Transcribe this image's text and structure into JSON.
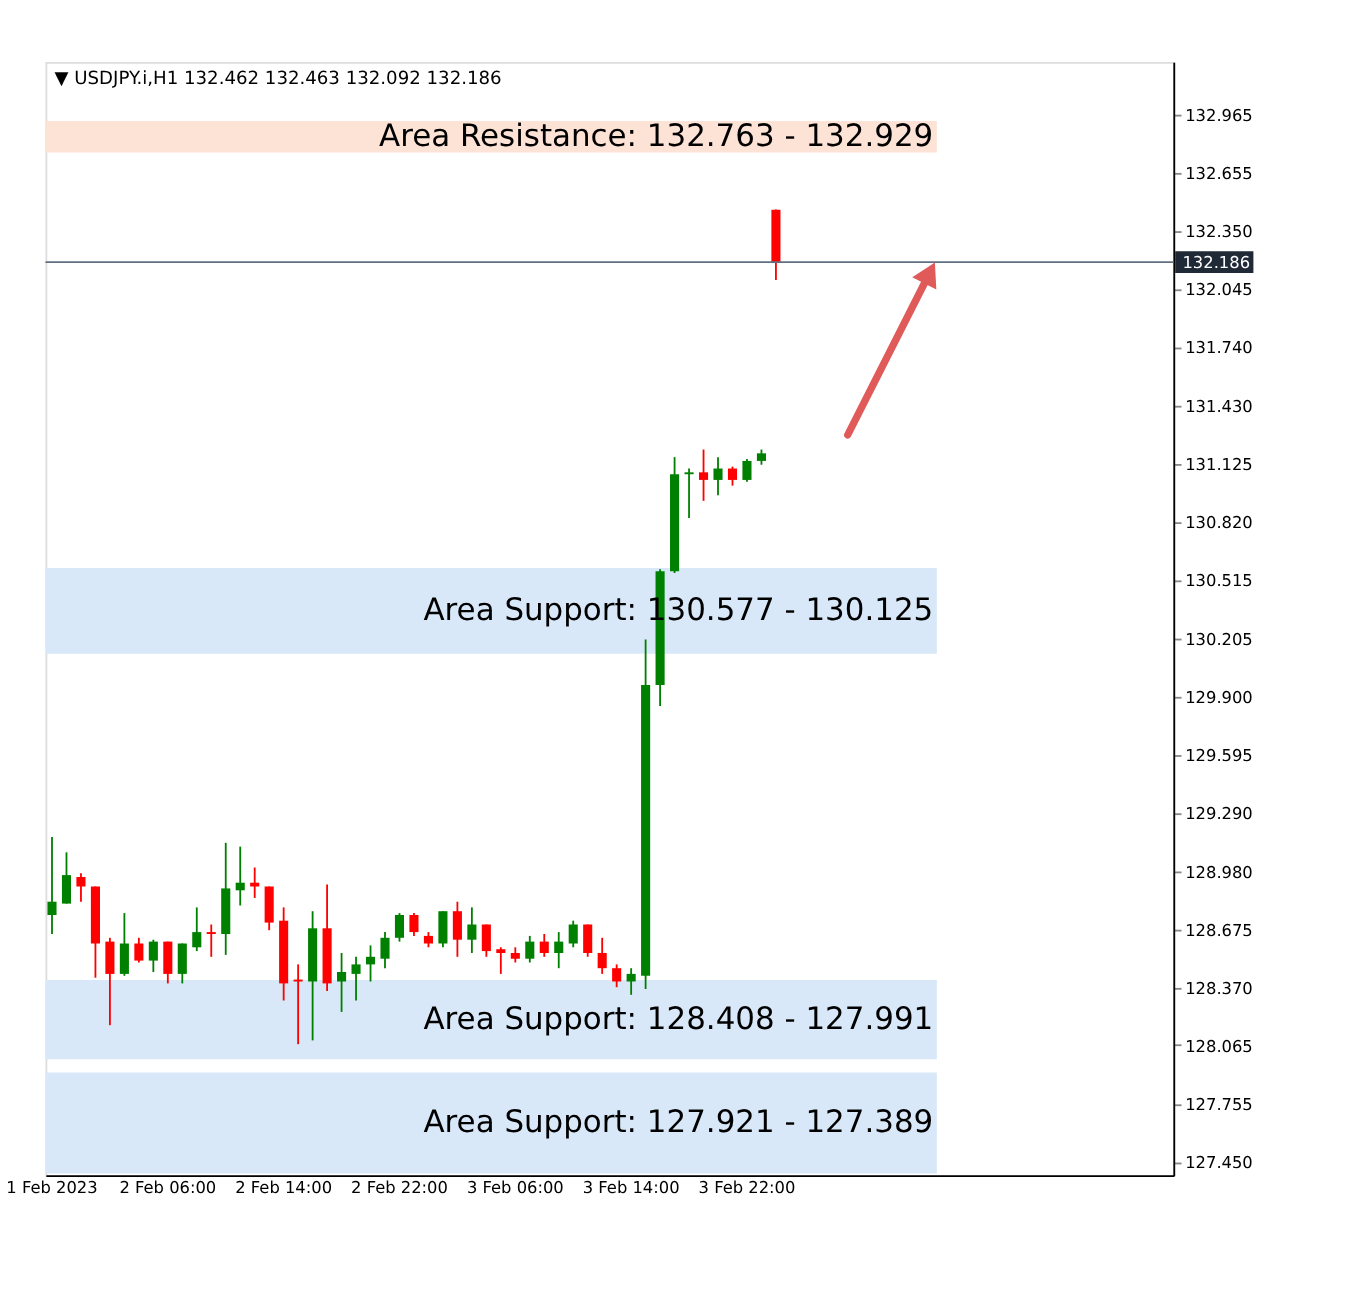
{
  "chart_data": {
    "type": "candlestick",
    "title": "▼ USDJPY.i,H1  132.462 132.463 132.092 132.186",
    "categories": [
      "1 Feb 2023",
      null,
      null,
      null,
      null,
      null,
      null,
      null,
      "2 Feb 06:00",
      null,
      null,
      null,
      null,
      null,
      null,
      null,
      "2 Feb 14:00",
      null,
      null,
      null,
      null,
      null,
      null,
      null,
      "2 Feb 22:00",
      null,
      null,
      null,
      null,
      null,
      null,
      null,
      "3 Feb 06:00",
      null,
      null,
      null,
      null,
      null,
      null,
      null,
      "3 Feb 14:00",
      null,
      null,
      null,
      null,
      null,
      null,
      null,
      "3 Feb 22:00",
      null,
      null,
      null,
      null,
      null,
      null,
      null,
      null,
      null,
      null,
      null,
      null,
      null,
      null,
      null,
      null,
      null,
      null,
      null,
      null,
      null,
      null,
      null,
      null,
      null,
      null,
      null,
      null,
      null
    ],
    "ohlc": [
      [
        128.75,
        129.16,
        128.65,
        128.82
      ],
      [
        128.81,
        129.08,
        128.81,
        128.96
      ],
      [
        128.95,
        128.97,
        128.82,
        128.9
      ],
      [
        128.9,
        128.9,
        128.42,
        128.6
      ],
      [
        128.61,
        128.63,
        128.17,
        128.44
      ],
      [
        128.44,
        128.76,
        128.43,
        128.6
      ],
      [
        128.6,
        128.63,
        128.5,
        128.51
      ],
      [
        128.51,
        128.62,
        128.45,
        128.61
      ],
      [
        128.61,
        128.61,
        128.39,
        128.44
      ],
      [
        128.44,
        128.6,
        128.39,
        128.6
      ],
      [
        128.58,
        128.79,
        128.56,
        128.66
      ],
      [
        128.66,
        128.7,
        128.53,
        128.65
      ],
      [
        128.65,
        129.13,
        128.54,
        128.89
      ],
      [
        128.88,
        129.11,
        128.8,
        128.92
      ],
      [
        128.92,
        129.0,
        128.84,
        128.9
      ],
      [
        128.9,
        128.9,
        128.67,
        128.71
      ],
      [
        128.72,
        128.79,
        128.3,
        128.39
      ],
      [
        128.41,
        128.49,
        128.07,
        128.4
      ],
      [
        128.4,
        128.77,
        128.09,
        128.68
      ],
      [
        128.68,
        128.91,
        128.35,
        128.39
      ],
      [
        128.4,
        128.55,
        128.24,
        128.45
      ],
      [
        128.44,
        128.53,
        128.3,
        128.49
      ],
      [
        128.49,
        128.59,
        128.4,
        128.53
      ],
      [
        128.52,
        128.66,
        128.47,
        128.63
      ],
      [
        128.63,
        128.76,
        128.61,
        128.75
      ],
      [
        128.75,
        128.76,
        128.64,
        128.66
      ],
      [
        128.64,
        128.66,
        128.58,
        128.6
      ],
      [
        128.6,
        128.77,
        128.58,
        128.77
      ],
      [
        128.77,
        128.82,
        128.53,
        128.62
      ],
      [
        128.62,
        128.79,
        128.55,
        128.7
      ],
      [
        128.7,
        128.7,
        128.53,
        128.56
      ],
      [
        128.57,
        128.58,
        128.44,
        128.55
      ],
      [
        128.55,
        128.58,
        128.5,
        128.52
      ],
      [
        128.52,
        128.64,
        128.5,
        128.61
      ],
      [
        128.61,
        128.65,
        128.53,
        128.55
      ],
      [
        128.55,
        128.66,
        128.47,
        128.61
      ],
      [
        128.6,
        128.72,
        128.58,
        128.7
      ],
      [
        128.7,
        128.7,
        128.53,
        128.55
      ],
      [
        128.55,
        128.63,
        128.44,
        128.47
      ],
      [
        128.47,
        128.49,
        128.37,
        128.4
      ],
      [
        128.4,
        128.47,
        128.33,
        128.44
      ],
      [
        128.43,
        130.2,
        128.36,
        129.96
      ],
      [
        129.96,
        130.57,
        129.85,
        130.56
      ],
      [
        130.56,
        131.16,
        130.55,
        131.07
      ],
      [
        131.07,
        131.1,
        130.84,
        131.08
      ],
      [
        131.08,
        131.2,
        130.93,
        131.04
      ],
      [
        131.04,
        131.16,
        130.96,
        131.1
      ],
      [
        131.1,
        131.11,
        131.01,
        131.04
      ],
      [
        131.04,
        131.15,
        131.03,
        131.14
      ],
      [
        131.14,
        131.2,
        131.12,
        131.18
      ],
      [
        132.462,
        132.463,
        132.092,
        132.186
      ],
      null,
      null,
      null,
      null,
      null,
      null,
      null,
      null,
      null,
      null,
      null,
      null,
      null,
      null,
      null,
      null,
      null,
      null,
      null,
      null,
      null,
      null,
      null,
      null,
      null,
      null,
      null
    ],
    "colors": [
      "#008000",
      "#008000",
      "#ff0000",
      "#ff0000",
      "#ff0000",
      "#008000",
      "#ff0000",
      "#008000",
      "#ff0000",
      "#008000",
      "#008000",
      "#ff0000",
      "#008000",
      "#008000",
      "#ff0000",
      "#ff0000",
      "#ff0000",
      "#ff0000",
      "#008000",
      "#ff0000",
      "#008000",
      "#008000",
      "#008000",
      "#008000",
      "#008000",
      "#ff0000",
      "#ff0000",
      "#008000",
      "#ff0000",
      "#008000",
      "#ff0000",
      "#ff0000",
      "#ff0000",
      "#008000",
      "#ff0000",
      "#008000",
      "#008000",
      "#ff0000",
      "#ff0000",
      "#ff0000",
      "#008000",
      "#008000",
      "#008000",
      "#008000",
      "#008000",
      "#ff0000",
      "#008000",
      "#ff0000",
      "#008000",
      "#008000",
      "#ff0000",
      null,
      null,
      null,
      null,
      null,
      null,
      null,
      null,
      null,
      null,
      null,
      null,
      null,
      null,
      null,
      null,
      null,
      null,
      null,
      null,
      null,
      null,
      null,
      null,
      null,
      null,
      null
    ],
    "ylim": [
      127.38,
      133.24
    ],
    "yticks": [
      132.965,
      132.655,
      {
        "value": 132.35,
        "label": "132.350"
      },
      132.045,
      {
        "value": 131.74,
        "label": "131.740"
      },
      {
        "value": 131.43,
        "label": "131.430"
      },
      131.125,
      {
        "value": 130.82,
        "label": "130.820"
      },
      130.515,
      130.205,
      {
        "value": 129.9,
        "label": "129.900"
      },
      129.595,
      {
        "value": 129.29,
        "label": "129.290"
      },
      {
        "value": 128.98,
        "label": "128.980"
      },
      128.675,
      {
        "value": 128.37,
        "label": "128.370"
      },
      128.065,
      127.755,
      {
        "value": 127.45,
        "label": "127.450"
      }
    ],
    "ref_lines": [
      {
        "axis": "y",
        "value": 132.186,
        "label": "132.186",
        "color": "#607080"
      }
    ],
    "bands": [
      {
        "axis": "y",
        "from": 132.763,
        "to": 132.929,
        "label": "Area Resistance: 132.763 - 132.929",
        "color": "#fde3d6"
      },
      {
        "axis": "y",
        "from": 130.125,
        "to": 130.577,
        "label": "Area Support: 130.577 - 130.125",
        "color": "#d8e8f8"
      },
      {
        "axis": "y",
        "from": 127.991,
        "to": 128.408,
        "label": "Area Support: 128.408 - 127.991",
        "color": "#d8e8f8"
      },
      {
        "axis": "y",
        "from": 127.389,
        "to": 127.921,
        "label": "Area Support: 127.921 - 127.389",
        "color": "#d8e8f8"
      }
    ],
    "grid": false
  }
}
